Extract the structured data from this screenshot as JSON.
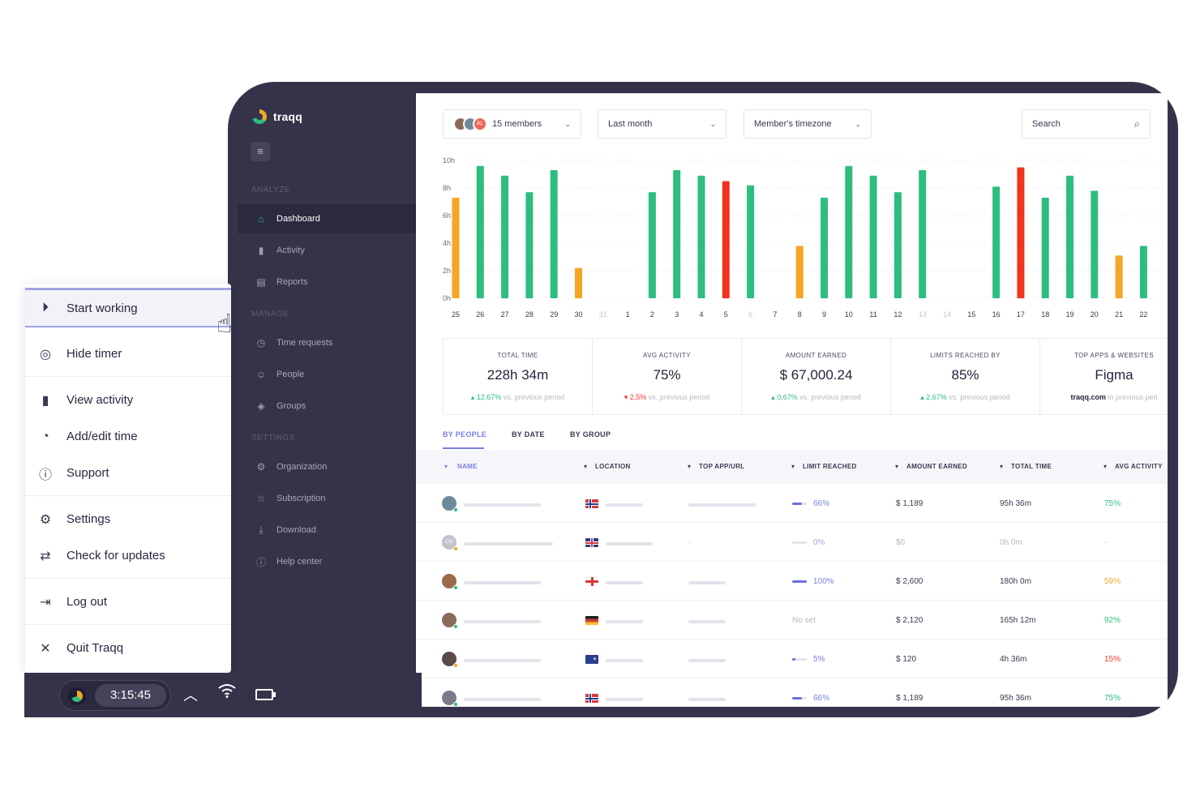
{
  "brand": {
    "name": "traqq"
  },
  "sidebar": {
    "sections": {
      "analyze": "ANALYZE",
      "manage": "MANAGE",
      "settings": "SETTINGS"
    },
    "items": [
      {
        "label": "Dashboard",
        "icon": "home-icon",
        "active": true
      },
      {
        "label": "Activity",
        "icon": "bar-chart-icon"
      },
      {
        "label": "Reports",
        "icon": "reports-icon"
      },
      {
        "label": "Time requests",
        "icon": "clock-icon"
      },
      {
        "label": "People",
        "icon": "people-icon"
      },
      {
        "label": "Groups",
        "icon": "layers-icon"
      },
      {
        "label": "Organization",
        "icon": "gear-icon"
      },
      {
        "label": "Subscription",
        "icon": "star-icon"
      },
      {
        "label": "Download",
        "icon": "download-icon"
      },
      {
        "label": "Help center",
        "icon": "help-icon"
      }
    ]
  },
  "filters": {
    "members": {
      "label": "15 members",
      "avatar_initials": "AL"
    },
    "period": "Last month",
    "timezone": "Member's timezone",
    "search_placeholder": "Search"
  },
  "chart_data": {
    "type": "bar",
    "y_ticks": [
      "10h",
      "8h",
      "6h",
      "4h",
      "2h",
      "0h"
    ],
    "ylim": [
      0,
      10
    ],
    "categories": [
      "25",
      "26",
      "27",
      "28",
      "29",
      "30",
      "31",
      "1",
      "2",
      "3",
      "4",
      "5",
      "6",
      "7",
      "8",
      "9",
      "10",
      "11",
      "12",
      "13",
      "14",
      "15",
      "16",
      "17",
      "18",
      "19",
      "20",
      "21",
      "22"
    ],
    "values": [
      7.3,
      9.6,
      8.9,
      7.7,
      9.3,
      2.2,
      0,
      0,
      7.7,
      9.3,
      8.9,
      8.5,
      8.2,
      0,
      3.8,
      7.3,
      9.6,
      8.9,
      7.7,
      9.3,
      0,
      0,
      8.1,
      9.5,
      7.3,
      8.9,
      7.8,
      3.1,
      3.8
    ],
    "bar_colors": [
      "#f5a623",
      "#2dbe7e",
      "#2dbe7e",
      "#2dbe7e",
      "#2dbe7e",
      "#f5a623",
      "",
      "",
      "#2dbe7e",
      "#2dbe7e",
      "#2dbe7e",
      "#f0341f",
      "#2dbe7e",
      "",
      "#f5a623",
      "#2dbe7e",
      "#2dbe7e",
      "#2dbe7e",
      "#2dbe7e",
      "#2dbe7e",
      "",
      "",
      "#2dbe7e",
      "#f0341f",
      "#2dbe7e",
      "#2dbe7e",
      "#2dbe7e",
      "#f5a623",
      "#2dbe7e"
    ],
    "muted_categories": [
      "31",
      "6",
      "13",
      "14"
    ],
    "grid": true
  },
  "stats": [
    {
      "label": "TOTAL TIME",
      "value": "228h 34m",
      "delta": "12,67%",
      "dir": "up",
      "suffix": " vs. previous period"
    },
    {
      "label": "AVG ACTIVITY",
      "value": "75%",
      "delta": "2,5%",
      "dir": "down",
      "suffix": " vs. previous period"
    },
    {
      "label": "AMOUNT EARNED",
      "value": "$ 67,000.24",
      "delta": "0,67%",
      "dir": "up",
      "suffix": " vs. previous period"
    },
    {
      "label": "LIMITS REACHED BY",
      "value": "85%",
      "delta": "2,67%",
      "dir": "up",
      "suffix": " vs. previous period"
    },
    {
      "label": "TOP APPS & WEBSITES",
      "value": "Figma",
      "delta": "traqq.com",
      "dir": "neutral",
      "suffix": " in previous peri"
    }
  ],
  "tabs": [
    "BY PEOPLE",
    "BY DATE",
    "BY GROUP"
  ],
  "table": {
    "headers": [
      "NAME",
      "LOCATION",
      "TOP APP/URL",
      "LIMIT REACHED",
      "AMOUNT EARNED",
      "TOTAL TIME",
      "AVG ACTIVITY"
    ],
    "rows": [
      {
        "initials": "",
        "avatar_color": "#6e8a9a",
        "status": "#2dbe7e",
        "flag": "norway",
        "top_app": "",
        "limit": "66%",
        "limit_fill": 0.66,
        "amount": "$ 1,189",
        "time": "95h 36m",
        "activity": "75%",
        "activity_color": "#2dbe7e",
        "muted": false
      },
      {
        "initials": "CW",
        "avatar_color": "#c2c2cc",
        "status": "#f5a623",
        "flag": "uk",
        "top_app": "-",
        "limit": "0%",
        "limit_fill": 0,
        "amount": "$0",
        "time": "0h 0m",
        "activity": "-",
        "activity_color": "#b9b8c6",
        "muted": true
      },
      {
        "initials": "",
        "avatar_color": "#9a6a4a",
        "status": "#2dbe7e",
        "flag": "england",
        "top_app": "",
        "limit": "100%",
        "limit_fill": 1,
        "amount": "$ 2,600",
        "time": "180h 0m",
        "activity": "59%",
        "activity_color": "#f5a623",
        "muted": false
      },
      {
        "initials": "",
        "avatar_color": "#8a6a5a",
        "status": "#2dbe7e",
        "flag": "germany",
        "top_app": "",
        "limit": "No set",
        "limit_fill": null,
        "amount": "$ 2,120",
        "time": "165h 12m",
        "activity": "92%",
        "activity_color": "#2dbe7e",
        "muted": false
      },
      {
        "initials": "",
        "avatar_color": "#5a4a4a",
        "status": "#f5a623",
        "flag": "australia",
        "top_app": "",
        "limit": "5%",
        "limit_fill": 0.05,
        "amount": "$ 120",
        "time": "4h 36m",
        "activity": "15%",
        "activity_color": "#ee3b2a",
        "muted": false
      },
      {
        "initials": "",
        "avatar_color": "#7a7a8a",
        "status": "#2dbe7e",
        "flag": "norway",
        "top_app": "",
        "limit": "66%",
        "limit_fill": 0.66,
        "amount": "$ 1,189",
        "time": "95h 36m",
        "activity": "75%",
        "activity_color": "#2dbe7e",
        "muted": false
      }
    ]
  },
  "menu": {
    "items": [
      {
        "label": "Start working",
        "icon": "play-circle-icon"
      },
      {
        "label": "Hide timer",
        "icon": "hide-timer-icon"
      },
      {
        "label": "View activity",
        "icon": "bar-chart-icon"
      },
      {
        "label": "Add/edit time",
        "icon": "timer-icon"
      },
      {
        "label": "Support",
        "icon": "help-icon"
      },
      {
        "label": "Settings",
        "icon": "gear-icon"
      },
      {
        "label": "Check for updates",
        "icon": "refresh-icon"
      },
      {
        "label": "Log out",
        "icon": "logout-icon"
      },
      {
        "label": "Quit Traqq",
        "icon": "close-icon"
      }
    ]
  },
  "taskbar": {
    "time": "3:15:45"
  }
}
